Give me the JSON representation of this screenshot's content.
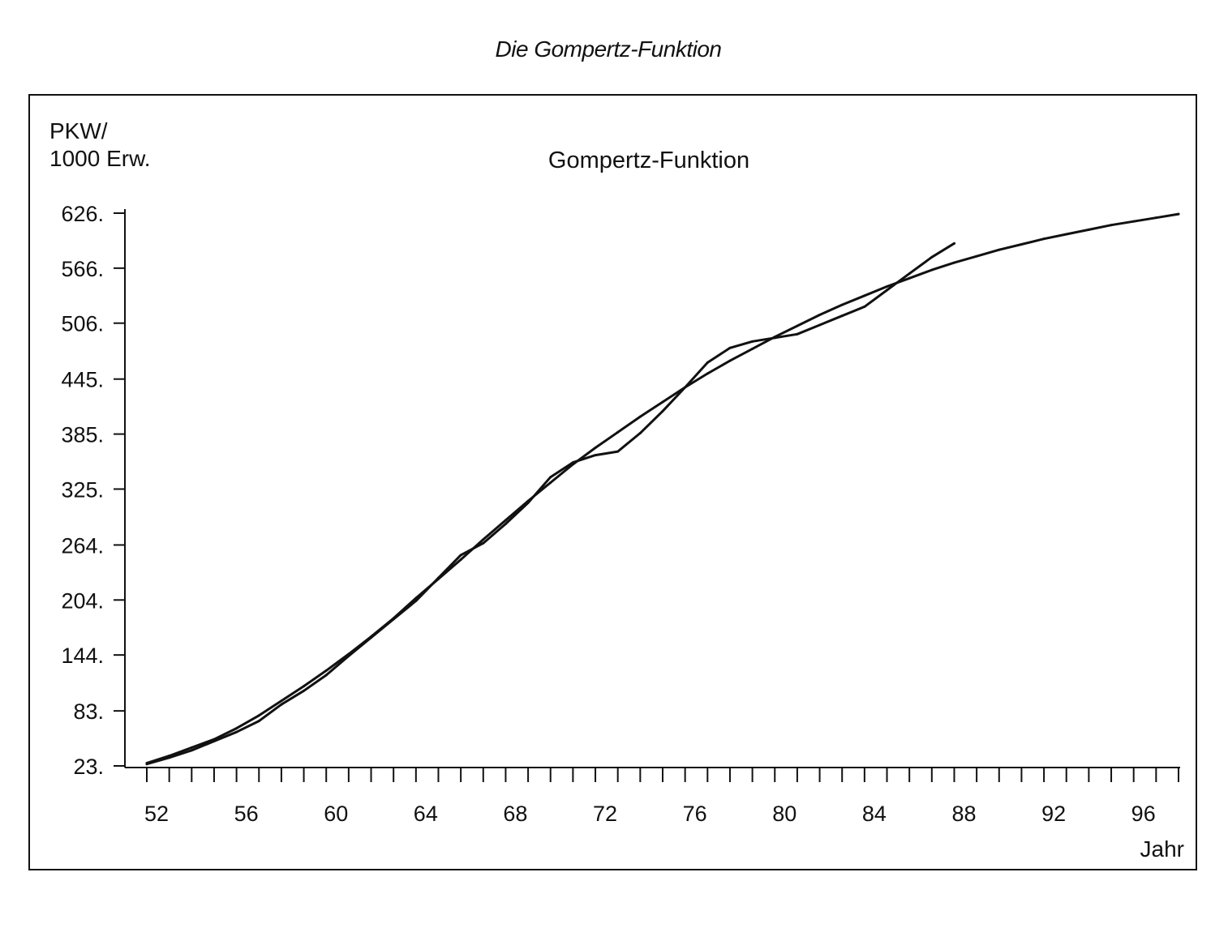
{
  "header": {
    "title": "Die Gompertz-Funktion"
  },
  "chart_data": {
    "type": "line",
    "title": "Gompertz-Funktion",
    "ylabel_lines": [
      "PKW/",
      "1000 Erw."
    ],
    "xlabel": "Jahr",
    "ylim": [
      23,
      626
    ],
    "xlim": [
      51.5,
      98.5
    ],
    "y_tick_labels": [
      "23.",
      "83.",
      "144.",
      "204.",
      "264.",
      "325.",
      "385.",
      "445.",
      "506.",
      "566.",
      "626."
    ],
    "y_tick_values": [
      23,
      83,
      144,
      204,
      264,
      325,
      385,
      445,
      506,
      566,
      626
    ],
    "x_tick_labels": [
      "52",
      "56",
      "60",
      "64",
      "68",
      "72",
      "76",
      "80",
      "84",
      "88",
      "92",
      "96"
    ],
    "x_tick_values": [
      52,
      56,
      60,
      64,
      68,
      72,
      76,
      80,
      84,
      88,
      92,
      96
    ],
    "grid": false,
    "color": "#111111",
    "series": [
      {
        "x": [
          52,
          53,
          54,
          55,
          56,
          57,
          58,
          59,
          60,
          61,
          62,
          63,
          64,
          65,
          66,
          67,
          68,
          69,
          70,
          71,
          72,
          73,
          74,
          75,
          76,
          77,
          78,
          79,
          80,
          81,
          82,
          83,
          84,
          85,
          86,
          87,
          88
        ],
        "y": [
          25,
          32,
          40,
          50,
          60,
          72,
          90,
          105,
          122,
          143,
          163,
          183,
          203,
          228,
          253,
          266,
          287,
          310,
          338,
          354,
          362,
          366,
          386,
          410,
          436,
          463,
          479,
          486,
          490,
          494,
          504,
          514,
          524,
          542,
          560,
          578,
          593
        ]
      },
      {
        "x": [
          52,
          53,
          54,
          55,
          56,
          57,
          58,
          59,
          60,
          61,
          62,
          63,
          64,
          65,
          66,
          67,
          68,
          69,
          70,
          71,
          72,
          73,
          74,
          75,
          76,
          77,
          78,
          79,
          80,
          81,
          82,
          83,
          84,
          85,
          86,
          87,
          88,
          89,
          90,
          91,
          92,
          93,
          94,
          95,
          96,
          97,
          98
        ],
        "y": [
          26,
          34,
          43,
          52,
          64,
          78,
          94,
          110,
          127,
          145,
          164,
          184,
          206,
          227,
          248,
          270,
          291,
          312,
          332,
          352,
          370,
          387,
          404,
          420,
          436,
          451,
          465,
          478,
          491,
          503,
          515,
          526,
          536,
          546,
          555,
          564,
          572,
          579,
          586,
          592,
          598,
          603,
          608,
          613,
          617,
          621,
          625
        ]
      }
    ]
  }
}
